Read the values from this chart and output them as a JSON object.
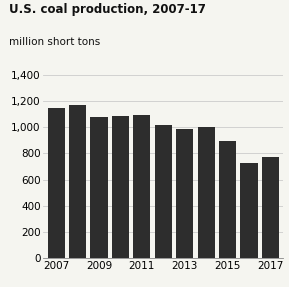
{
  "title": "U.S. coal production, 2007-17",
  "subtitle": "million short tons",
  "years": [
    2007,
    2008,
    2009,
    2010,
    2011,
    2012,
    2013,
    2014,
    2015,
    2016,
    2017
  ],
  "values": [
    1147,
    1172,
    1075,
    1085,
    1094,
    1016,
    985,
    1000,
    896,
    728,
    775
  ],
  "bar_color": "#2d2d2d",
  "background_color": "#f5f5f0",
  "ylim": [
    0,
    1400
  ],
  "yticks": [
    0,
    200,
    400,
    600,
    800,
    1000,
    1200,
    1400
  ],
  "xticks": [
    2007,
    2009,
    2011,
    2013,
    2015,
    2017
  ],
  "title_fontsize": 8.5,
  "subtitle_fontsize": 7.5,
  "tick_fontsize": 7.5,
  "grid_color": "#cccccc"
}
